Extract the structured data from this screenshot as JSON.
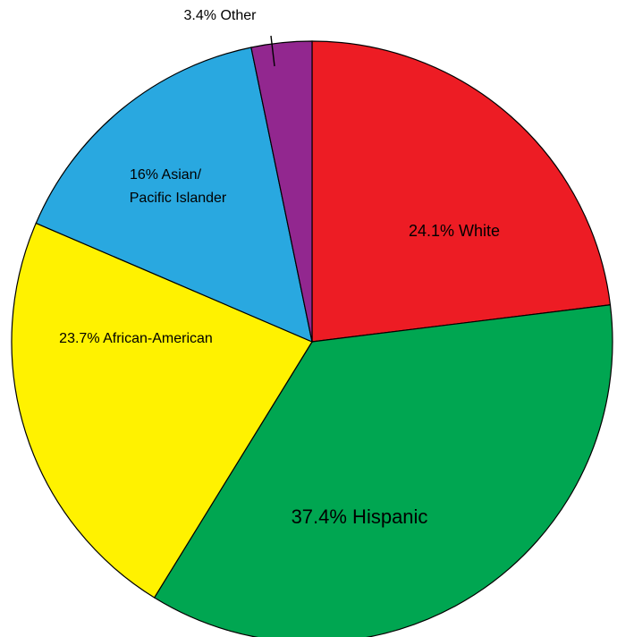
{
  "chart_data": {
    "type": "pie",
    "title": "",
    "start": "12 o'clock",
    "direction": "clockwise",
    "slices": [
      {
        "label": "White",
        "value": 24.1,
        "color": "#ED1C24",
        "text": "24.1% White"
      },
      {
        "label": "Hispanic",
        "value": 37.4,
        "color": "#00A651",
        "text": "37.4% Hispanic"
      },
      {
        "label": "African-American",
        "value": 23.7,
        "color": "#FFF200",
        "text": "23.7% African-American"
      },
      {
        "label": "Asian/Pacific Islander",
        "value": 16,
        "color": "#29A8E0",
        "text_lines": [
          "16% Asian/",
          "Pacific Islander"
        ]
      },
      {
        "label": "Other",
        "value": 3.4,
        "color": "#92278F",
        "text": "3.4% Other"
      }
    ]
  }
}
